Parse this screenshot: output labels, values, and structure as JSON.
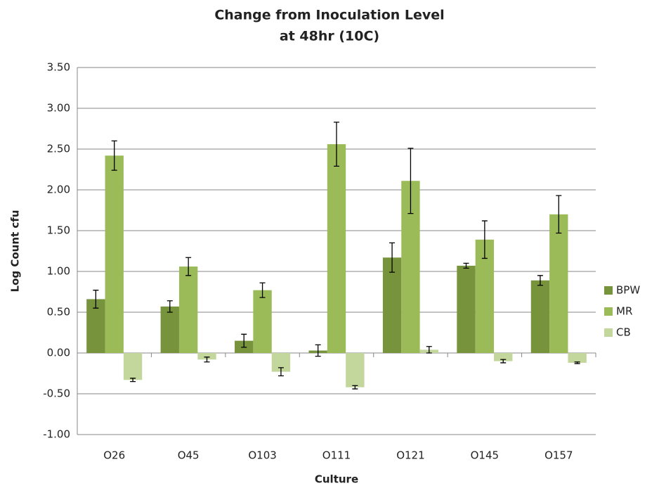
{
  "chart_data": {
    "type": "bar",
    "title": [
      "Change from  Inoculation Level",
      "at 48hr (10C)"
    ],
    "x_label": "Culture",
    "y_label": "Log Count cfu",
    "categories": [
      "O26",
      "O45",
      "O103",
      "O111",
      "O121",
      "O145",
      "O157"
    ],
    "series": [
      {
        "name": "BPW",
        "color": "#77933c",
        "values": [
          0.66,
          0.57,
          0.15,
          0.03,
          1.17,
          1.07,
          0.89
        ],
        "errors": [
          0.11,
          0.07,
          0.08,
          0.07,
          0.18,
          0.03,
          0.06
        ]
      },
      {
        "name": "MR",
        "color": "#9bbb59",
        "values": [
          2.42,
          1.06,
          0.77,
          2.56,
          2.11,
          1.39,
          1.7
        ],
        "errors": [
          0.18,
          0.11,
          0.09,
          0.27,
          0.4,
          0.23,
          0.23
        ]
      },
      {
        "name": "CB",
        "color": "#c3d69b",
        "values": [
          -0.33,
          -0.08,
          -0.23,
          -0.42,
          0.04,
          -0.1,
          -0.12
        ],
        "errors": [
          0.02,
          0.03,
          0.05,
          0.02,
          0.04,
          0.02,
          0.01
        ]
      }
    ],
    "ylim": [
      -1,
      3.5
    ],
    "yticks": [
      {
        "value": -1,
        "label": "-1.00"
      },
      {
        "value": -0.5,
        "label": "-0.50"
      },
      {
        "value": 0,
        "label": "0.00"
      },
      {
        "value": 0.5,
        "label": "0.50"
      },
      {
        "value": 1,
        "label": "1.00"
      },
      {
        "value": 1.5,
        "label": "1.50"
      },
      {
        "value": 2,
        "label": "2.00"
      },
      {
        "value": 2.5,
        "label": "2.50"
      },
      {
        "value": 3,
        "label": "3.00"
      },
      {
        "value": 3.5,
        "label": "3.50"
      }
    ],
    "grid": true,
    "legend": "right"
  }
}
